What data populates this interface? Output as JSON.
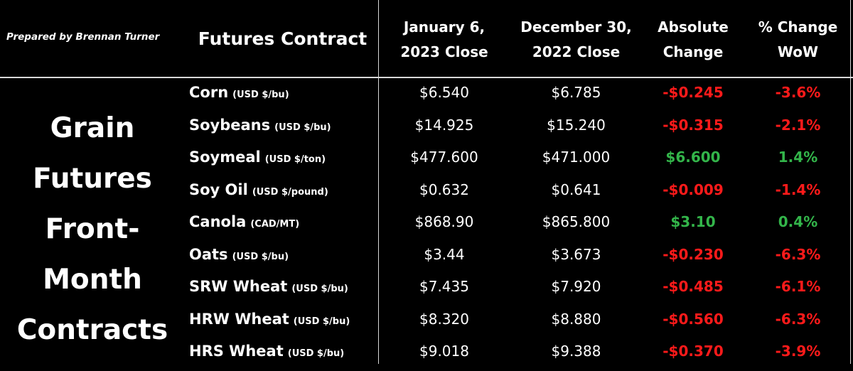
{
  "prepared_by": "Prepared by Brennan Turner",
  "side_title": [
    "Grain",
    "Futures",
    "Front-",
    "Month",
    "Contracts"
  ],
  "headers": {
    "contract": "Futures Contract",
    "jan": [
      "January 6,",
      "2023 Close"
    ],
    "dec": [
      "December 30,",
      "2022 Close"
    ],
    "abs": [
      "Absolute",
      "Change"
    ],
    "pct": [
      "% Change",
      "WoW"
    ]
  },
  "colors": {
    "negative": "#ff1a1a",
    "positive": "#33b54a",
    "background": "#000000",
    "text": "#ffffff"
  },
  "rows": [
    {
      "name": "Corn",
      "unit": "(USD $/bu)",
      "jan": "$6.540",
      "dec": "$6.785",
      "abs": "-$0.245",
      "pct": "-3.6%",
      "direction": "negative"
    },
    {
      "name": "Soybeans",
      "unit": "(USD $/bu)",
      "jan": "$14.925",
      "dec": "$15.240",
      "abs": "-$0.315",
      "pct": "-2.1%",
      "direction": "negative"
    },
    {
      "name": "Soymeal",
      "unit": "(USD $/ton)",
      "jan": "$477.600",
      "dec": "$471.000",
      "abs": "$6.600",
      "pct": "1.4%",
      "direction": "positive"
    },
    {
      "name": "Soy Oil",
      "unit": "(USD $/pound)",
      "jan": "$0.632",
      "dec": "$0.641",
      "abs": "-$0.009",
      "pct": "-1.4%",
      "direction": "negative"
    },
    {
      "name": "Canola",
      "unit": "(CAD/MT)",
      "jan": "$868.90",
      "dec": "$865.800",
      "abs": "$3.10",
      "pct": "0.4%",
      "direction": "positive"
    },
    {
      "name": "Oats",
      "unit": "(USD $/bu)",
      "jan": "$3.44",
      "dec": "$3.673",
      "abs": "-$0.230",
      "pct": "-6.3%",
      "direction": "negative"
    },
    {
      "name": "SRW Wheat",
      "unit": "(USD $/bu)",
      "jan": "$7.435",
      "dec": "$7.920",
      "abs": "-$0.485",
      "pct": "-6.1%",
      "direction": "negative"
    },
    {
      "name": "HRW Wheat",
      "unit": "(USD $/bu)",
      "jan": "$8.320",
      "dec": "$8.880",
      "abs": "-$0.560",
      "pct": "-6.3%",
      "direction": "negative"
    },
    {
      "name": "HRS Wheat",
      "unit": "(USD $/bu)",
      "jan": "$9.018",
      "dec": "$9.388",
      "abs": "-$0.370",
      "pct": "-3.9%",
      "direction": "negative"
    }
  ]
}
